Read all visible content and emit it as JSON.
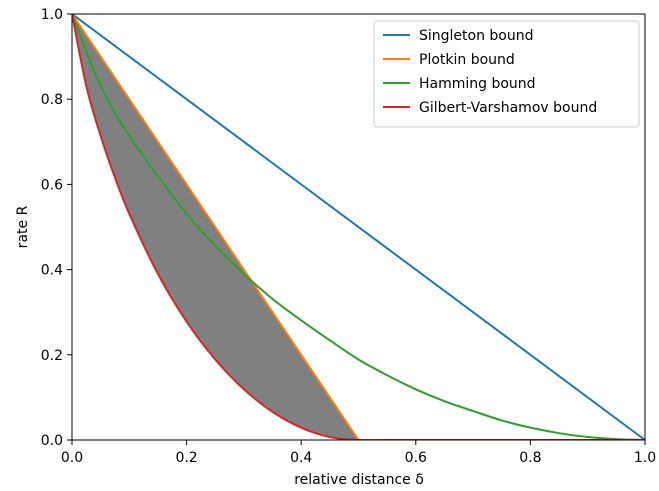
{
  "chart_data": {
    "type": "line",
    "xlabel": "relative distance δ",
    "ylabel": "rate R",
    "xlim": [
      0,
      1
    ],
    "ylim": [
      0,
      1
    ],
    "xticks": [
      "0.0",
      "0.2",
      "0.4",
      "0.6",
      "0.8",
      "1.0"
    ],
    "yticks": [
      "0.0",
      "0.2",
      "0.4",
      "0.6",
      "0.8",
      "1.0"
    ],
    "grid": false,
    "legend_position": "top-right",
    "series": [
      {
        "name": "Singleton bound",
        "color": "#1f77b4",
        "x": [
          0,
          1
        ],
        "y": [
          1,
          0
        ]
      },
      {
        "name": "Plotkin bound",
        "color": "#ff7f0e",
        "x": [
          0,
          0.5,
          1
        ],
        "y": [
          1,
          0,
          0
        ]
      },
      {
        "name": "Hamming bound",
        "color": "#2ca02c",
        "x": [
          0,
          0.05,
          0.1,
          0.15,
          0.2,
          0.25,
          0.3,
          0.35,
          0.4,
          0.45,
          0.5,
          0.55,
          0.6,
          0.65,
          0.7,
          0.75,
          0.8,
          0.85,
          0.9,
          0.95,
          1
        ],
        "y": [
          1,
          0.831,
          0.714,
          0.619,
          0.531,
          0.456,
          0.39,
          0.331,
          0.281,
          0.234,
          0.189,
          0.152,
          0.119,
          0.091,
          0.068,
          0.046,
          0.029,
          0.016,
          0.007,
          0.002,
          0
        ]
      },
      {
        "name": "Gilbert-Varshamov bound",
        "color": "#d62728",
        "x": [
          0,
          0.025,
          0.05,
          0.075,
          0.1,
          0.15,
          0.2,
          0.25,
          0.3,
          0.35,
          0.4,
          0.45,
          0.5,
          0.55,
          0.6,
          0.7,
          0.8,
          0.9,
          1
        ],
        "y": [
          1,
          0.831,
          0.714,
          0.616,
          0.531,
          0.39,
          0.278,
          0.189,
          0.119,
          0.066,
          0.029,
          0.007,
          0,
          0,
          0,
          0,
          0,
          0,
          0
        ]
      }
    ],
    "shaded_region": {
      "color": "#808080",
      "between": [
        "Gilbert-Varshamov bound",
        "Plotkin bound"
      ],
      "x_range": [
        0,
        0.5
      ]
    }
  }
}
